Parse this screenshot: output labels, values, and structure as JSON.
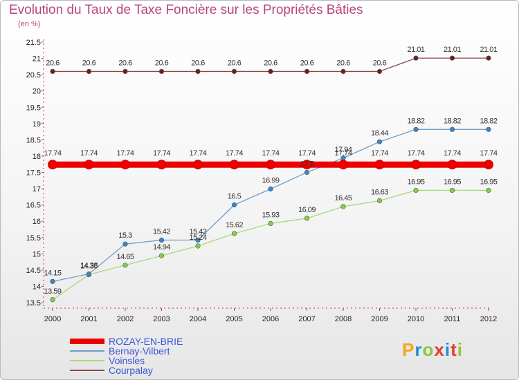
{
  "title": "Evolution du Taux de Taxe Foncière sur les Propriétés Bâties",
  "subtitle": "(en %)",
  "logo": {
    "text": "Proxiti",
    "colors": [
      "#f2a619",
      "#1e8fd8",
      "#8cc63f",
      "#e53e2f",
      "#1e8fd8",
      "#e53e2f",
      "#8cc63f"
    ]
  },
  "chart_data": {
    "type": "line",
    "x": [
      2000,
      2001,
      2002,
      2003,
      2004,
      2005,
      2006,
      2007,
      2008,
      2009,
      2010,
      2011,
      2012
    ],
    "ylim": [
      13.5,
      21.5
    ],
    "yticks": [
      "13.5",
      "14",
      "14.5",
      "15",
      "15.5",
      "16",
      "16.5",
      "17",
      "17.5",
      "18",
      "18.5",
      "19",
      "19.5",
      "20",
      "20.5",
      "21",
      "21.5"
    ],
    "grid": false,
    "legend_position": "bottom-left",
    "series": [
      {
        "name": "ROZAY-EN-BRIE",
        "color": "#ee0000",
        "width": 9,
        "values": [
          17.74,
          17.74,
          17.74,
          17.74,
          17.74,
          17.74,
          17.74,
          17.74,
          17.74,
          17.74,
          17.74,
          17.74,
          17.74
        ],
        "labels": [
          "17.74",
          "17.74",
          "17.74",
          "17.74",
          "17.74",
          "17.74",
          "17.74",
          "17.74",
          "17.74",
          "17.74",
          "17.74",
          "17.74",
          "17.74"
        ]
      },
      {
        "name": "Bernay-Vilbert",
        "color": "#6e9ec8",
        "width": 1.3,
        "pointColor": "#3b86c6",
        "values": [
          14.15,
          14.38,
          15.3,
          15.42,
          15.42,
          16.5,
          16.99,
          17.5,
          17.94,
          18.44,
          18.82,
          18.82,
          18.82
        ],
        "labels": [
          "14.15",
          "14.38",
          "15.3",
          "15.42",
          "15.42",
          "16.5",
          "16.99",
          "17.5",
          "17.94",
          "18.44",
          "18.82",
          "18.82",
          "18.82"
        ]
      },
      {
        "name": "Voinsles",
        "color": "#a6d97a",
        "width": 1.3,
        "pointColor": "#86cf45",
        "values": [
          13.59,
          14.36,
          14.65,
          14.94,
          15.24,
          15.62,
          15.93,
          16.09,
          16.45,
          16.63,
          16.95,
          16.95,
          16.95
        ],
        "labels": [
          "13.59",
          "14.36",
          "14.65",
          "14.94",
          "15.24",
          "15.62",
          "15.93",
          "16.09",
          "16.45",
          "16.63",
          "16.95",
          "16.95",
          "16.95"
        ]
      },
      {
        "name": "Courpalay",
        "color": "#8a4a4a",
        "width": 1.3,
        "pointColor": "#6e1f1f",
        "values": [
          20.6,
          20.6,
          20.6,
          20.6,
          20.6,
          20.6,
          20.6,
          20.6,
          20.6,
          20.6,
          21.01,
          21.01,
          21.01
        ],
        "labels": [
          "20.6",
          "20.6",
          "20.6",
          "20.6",
          "20.6",
          "20.6",
          "20.6",
          "20.6",
          "20.6",
          "20.6",
          "21.01",
          "21.01",
          "21.01"
        ]
      }
    ]
  }
}
